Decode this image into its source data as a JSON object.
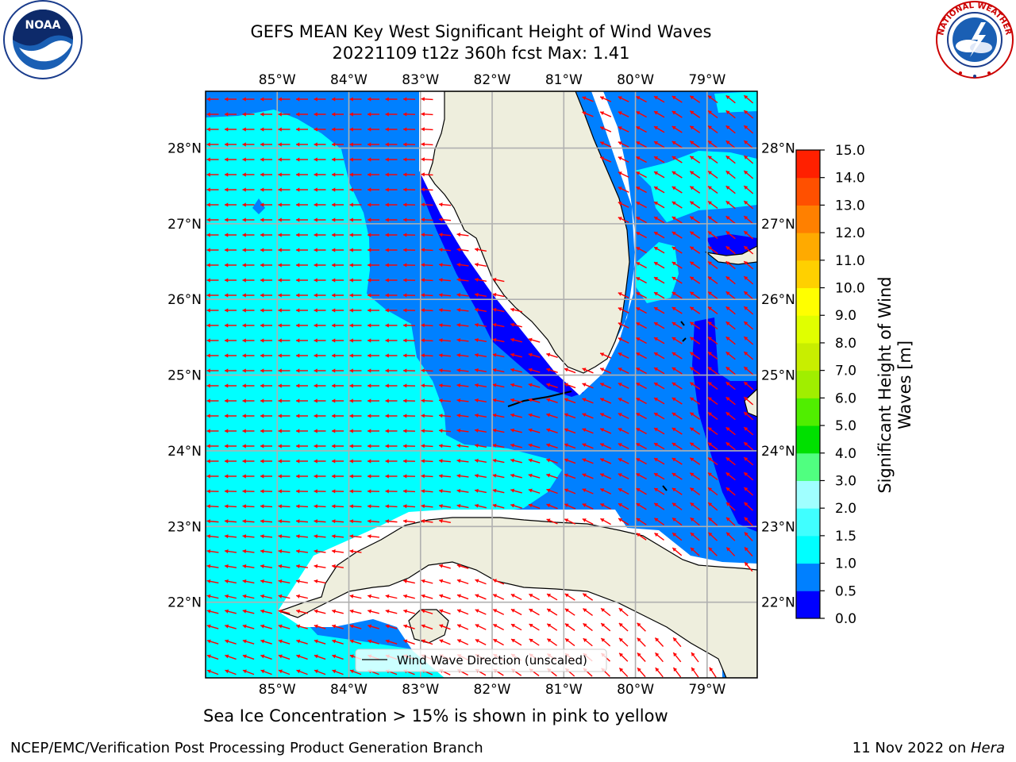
{
  "header": {
    "title_line1": "GEFS MEAN Key West Significant Height of Wind Waves",
    "title_line2": "20221109 t12z 360h fcst   Max: 1.41"
  },
  "map": {
    "lon_ticks": [
      "85°W",
      "84°W",
      "83°W",
      "82°W",
      "81°W",
      "80°W",
      "79°W"
    ],
    "lat_ticks": [
      "28°N",
      "27°N",
      "26°N",
      "25°N",
      "24°N",
      "23°N",
      "22°N"
    ],
    "lon_range": [
      -86.0,
      -78.3
    ],
    "lat_range": [
      21.0,
      28.75
    ],
    "legend_label": "Wind Wave Direction (unscaled)",
    "colors": {
      "land": "#eeeedd",
      "shade_0_0_5": "#0000ff",
      "shade_0_5_1_0": "#0080ff",
      "shade_1_0_1_5": "#00ffff",
      "arrow": "#ff0000",
      "grid": "#b0b0b0"
    }
  },
  "colorbar": {
    "ticks": [
      "0.0",
      "0.5",
      "1.0",
      "1.5",
      "2.0",
      "3.0",
      "4.0",
      "5.0",
      "6.0",
      "7.0",
      "8.0",
      "9.0",
      "10.0",
      "11.0",
      "12.0",
      "13.0",
      "14.0",
      "15.0"
    ],
    "colors": [
      "#0000ff",
      "#0080ff",
      "#00ffff",
      "#40ffff",
      "#a0ffff",
      "#50ff80",
      "#00e000",
      "#50ee00",
      "#a0ee00",
      "#c8ee00",
      "#e0ff00",
      "#ffff00",
      "#ffd000",
      "#ffaa00",
      "#ff8000",
      "#ff5000",
      "#ff2000"
    ],
    "title_line1": "Significant Height of Wind",
    "title_line2": "Waves [m]"
  },
  "subtitle": "Sea Ice Concentration > 15% is shown in pink to yellow",
  "footer": {
    "left": "NCEP/EMC/Verification Post Processing Product Generation Branch",
    "date": "11 Nov 2022 on ",
    "machine": "Hera"
  },
  "logos": {
    "noaa_text": "NOAA",
    "nws_text": "NATIONAL WEATHER SERVICE"
  }
}
